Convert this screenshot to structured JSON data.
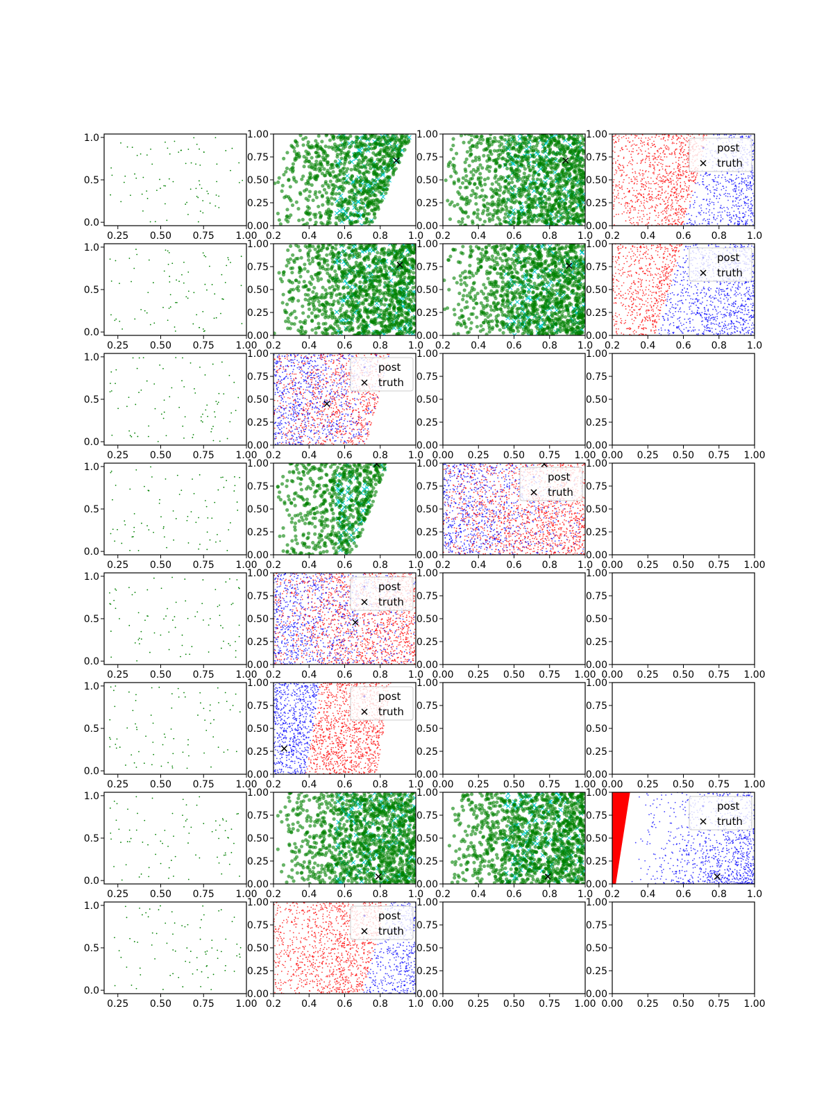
{
  "figure": {
    "layout": {
      "rows": 8,
      "cols": 4
    },
    "colors": {
      "green": "#008000",
      "cyan": "#00ced1",
      "red": "#ff0000",
      "blue": "#0000ff",
      "truth": "#000000",
      "axes": "#000000"
    }
  },
  "chart_data": [
    {
      "row": 0,
      "col": 0,
      "type": "scatter",
      "kind": "sparse",
      "xlim": [
        0.17,
        1.0
      ],
      "ylim": [
        -0.04,
        1.04
      ],
      "xticks": [
        "0.25",
        "0.50",
        "0.75",
        "1.00"
      ],
      "yticks": [
        "0.0",
        "0.5",
        "1.0"
      ]
    },
    {
      "row": 0,
      "col": 1,
      "type": "scatter",
      "kind": "green",
      "xlim": [
        0.2,
        1.0
      ],
      "ylim": [
        0,
        1
      ],
      "xticks": [
        "0.2",
        "0.4",
        "0.6",
        "0.8",
        "1.0"
      ],
      "yticks": [
        "0.00",
        "0.25",
        "0.50",
        "0.75",
        "1.00"
      ],
      "boundary": {
        "y0": 0.0,
        "x0": 0.75,
        "y1": 1.0,
        "x1": 0.98
      },
      "truth": [
        0.89,
        0.71
      ]
    },
    {
      "row": 0,
      "col": 2,
      "type": "scatter",
      "kind": "green",
      "xlim": [
        0.2,
        1.0
      ],
      "ylim": [
        0,
        1
      ],
      "xticks": [
        "0.2",
        "0.4",
        "0.6",
        "0.8",
        "1.0"
      ],
      "yticks": [
        "0.00",
        "0.25",
        "0.50",
        "0.75",
        "1.00"
      ],
      "truth": [
        0.89,
        0.71
      ]
    },
    {
      "row": 0,
      "col": 3,
      "type": "scatter",
      "kind": "redblue",
      "xlim": [
        0.2,
        1.0
      ],
      "ylim": [
        0,
        1
      ],
      "xticks": [
        "0.2",
        "0.4",
        "0.6",
        "0.8",
        "1.0"
      ],
      "yticks": [
        "0.00",
        "0.25",
        "0.50",
        "0.75",
        "1.00"
      ],
      "boundary": {
        "y0": 0.0,
        "x0": 0.6,
        "y1": 1.0,
        "x1": 0.74
      },
      "left": "red",
      "right": "blue",
      "legend": {
        "entries": [
          "post",
          "truth"
        ],
        "loc": "upper-right"
      }
    },
    {
      "row": 1,
      "col": 0,
      "type": "scatter",
      "kind": "sparse",
      "xlim": [
        0.17,
        1.0
      ],
      "ylim": [
        -0.04,
        1.04
      ],
      "xticks": [
        "0.25",
        "0.50",
        "0.75",
        "1.00"
      ],
      "yticks": [
        "0.0",
        "0.5",
        "1.0"
      ]
    },
    {
      "row": 1,
      "col": 1,
      "type": "scatter",
      "kind": "green",
      "xlim": [
        0.2,
        1.0
      ],
      "ylim": [
        0,
        1
      ],
      "xticks": [
        "0.2",
        "0.4",
        "0.6",
        "0.8",
        "1.0"
      ],
      "yticks": [
        "0.00",
        "0.25",
        "0.50",
        "0.75",
        "1.00"
      ],
      "truth": [
        0.91,
        0.77
      ]
    },
    {
      "row": 1,
      "col": 2,
      "type": "scatter",
      "kind": "green",
      "xlim": [
        0.2,
        1.0
      ],
      "ylim": [
        0,
        1
      ],
      "xticks": [
        "0.2",
        "0.4",
        "0.6",
        "0.8",
        "1.0"
      ],
      "yticks": [
        "0.00",
        "0.25",
        "0.50",
        "0.75",
        "1.00"
      ],
      "truth": [
        0.91,
        0.76
      ]
    },
    {
      "row": 1,
      "col": 3,
      "type": "scatter",
      "kind": "redblue",
      "xlim": [
        0.2,
        1.0
      ],
      "ylim": [
        0,
        1
      ],
      "xticks": [
        "0.2",
        "0.4",
        "0.6",
        "0.8",
        "1.0"
      ],
      "yticks": [
        "0.00",
        "0.25",
        "0.50",
        "0.75",
        "1.00"
      ],
      "boundary": {
        "y0": 0.0,
        "x0": 0.44,
        "y1": 1.0,
        "x1": 0.6
      },
      "left": "red",
      "right": "blue",
      "legend": {
        "entries": [
          "post",
          "truth"
        ],
        "loc": "upper-right"
      }
    },
    {
      "row": 2,
      "col": 0,
      "type": "scatter",
      "kind": "sparse",
      "xlim": [
        0.17,
        1.0
      ],
      "ylim": [
        -0.04,
        1.04
      ],
      "xticks": [
        "0.25",
        "0.50",
        "0.75",
        "1.00"
      ],
      "yticks": [
        "0.0",
        "0.5",
        "1.0"
      ]
    },
    {
      "row": 2,
      "col": 1,
      "type": "scatter",
      "kind": "mixed",
      "xlim": [
        0.2,
        1.0
      ],
      "ylim": [
        0,
        1
      ],
      "xticks": [
        "0.2",
        "0.4",
        "0.6",
        "0.8",
        "1.0"
      ],
      "yticks": [
        "0.00",
        "0.25",
        "0.50",
        "0.75",
        "1.00"
      ],
      "boundary": {
        "y0": 0.0,
        "x0": 0.72,
        "y1": 1.0,
        "x1": 0.86
      },
      "truth": [
        0.5,
        0.45
      ],
      "legend": {
        "entries": [
          "post",
          "truth"
        ],
        "loc": "upper-right"
      }
    },
    {
      "row": 2,
      "col": 2,
      "type": "scatter",
      "kind": "empty",
      "xlim": [
        0,
        1
      ],
      "ylim": [
        0,
        1
      ],
      "xticks": [
        "0.00",
        "0.25",
        "0.50",
        "0.75",
        "1.00"
      ],
      "yticks": [
        "0.00",
        "0.25",
        "0.50",
        "0.75",
        "1.00"
      ]
    },
    {
      "row": 2,
      "col": 3,
      "type": "scatter",
      "kind": "empty",
      "xlim": [
        0,
        1
      ],
      "ylim": [
        0,
        1
      ],
      "xticks": [
        "0.00",
        "0.25",
        "0.50",
        "0.75",
        "1.00"
      ],
      "yticks": [
        "0.00",
        "0.25",
        "0.50",
        "0.75",
        "1.00"
      ]
    },
    {
      "row": 3,
      "col": 0,
      "type": "scatter",
      "kind": "sparse",
      "xlim": [
        0.17,
        1.0
      ],
      "ylim": [
        -0.04,
        1.04
      ],
      "xticks": [
        "0.25",
        "0.50",
        "0.75",
        "1.00"
      ],
      "yticks": [
        "0.0",
        "0.5",
        "1.0"
      ]
    },
    {
      "row": 3,
      "col": 1,
      "type": "scatter",
      "kind": "green",
      "xlim": [
        0.2,
        1.0
      ],
      "ylim": [
        0,
        1
      ],
      "xticks": [
        "0.2",
        "0.4",
        "0.6",
        "0.8",
        "1.0"
      ],
      "yticks": [
        "0.00",
        "0.25",
        "0.50",
        "0.75",
        "1.00"
      ],
      "boundary": {
        "y0": 0.0,
        "x0": 0.65,
        "y1": 1.0,
        "x1": 0.84
      },
      "truth": [
        0.78,
        0.99
      ]
    },
    {
      "row": 3,
      "col": 2,
      "type": "scatter",
      "kind": "mixed",
      "xlim": [
        0.2,
        1.0
      ],
      "ylim": [
        0,
        1
      ],
      "xticks": [
        "0.2",
        "0.4",
        "0.6",
        "0.8",
        "1.0"
      ],
      "yticks": [
        "0.00",
        "0.25",
        "0.50",
        "0.75",
        "1.00"
      ],
      "truth": [
        0.77,
        0.99
      ],
      "legend": {
        "entries": [
          "post",
          "truth"
        ],
        "loc": "upper-right"
      }
    },
    {
      "row": 3,
      "col": 3,
      "type": "scatter",
      "kind": "empty",
      "xlim": [
        0,
        1
      ],
      "ylim": [
        0,
        1
      ],
      "xticks": [
        "0.00",
        "0.25",
        "0.50",
        "0.75",
        "1.00"
      ],
      "yticks": [
        "0.00",
        "0.25",
        "0.50",
        "0.75",
        "1.00"
      ]
    },
    {
      "row": 4,
      "col": 0,
      "type": "scatter",
      "kind": "sparse",
      "xlim": [
        0.17,
        1.0
      ],
      "ylim": [
        -0.04,
        1.04
      ],
      "xticks": [
        "0.25",
        "0.50",
        "0.75",
        "1.00"
      ],
      "yticks": [
        "0.0",
        "0.5",
        "1.0"
      ]
    },
    {
      "row": 4,
      "col": 1,
      "type": "scatter",
      "kind": "mixed",
      "xlim": [
        0.2,
        1.0
      ],
      "ylim": [
        0,
        1
      ],
      "xticks": [
        "0.2",
        "0.4",
        "0.6",
        "0.8",
        "1.0"
      ],
      "yticks": [
        "0.00",
        "0.25",
        "0.50",
        "0.75",
        "1.00"
      ],
      "truth": [
        0.66,
        0.46
      ],
      "legend": {
        "entries": [
          "post",
          "truth"
        ],
        "loc": "upper-right"
      }
    },
    {
      "row": 4,
      "col": 2,
      "type": "scatter",
      "kind": "empty",
      "xlim": [
        0,
        1
      ],
      "ylim": [
        0,
        1
      ],
      "xticks": [
        "0.00",
        "0.25",
        "0.50",
        "0.75",
        "1.00"
      ],
      "yticks": [
        "0.00",
        "0.25",
        "0.50",
        "0.75",
        "1.00"
      ]
    },
    {
      "row": 4,
      "col": 3,
      "type": "scatter",
      "kind": "empty",
      "xlim": [
        0,
        1
      ],
      "ylim": [
        0,
        1
      ],
      "xticks": [
        "0.00",
        "0.25",
        "0.50",
        "0.75",
        "1.00"
      ],
      "yticks": [
        "0.00",
        "0.25",
        "0.50",
        "0.75",
        "1.00"
      ]
    },
    {
      "row": 5,
      "col": 0,
      "type": "scatter",
      "kind": "sparse",
      "xlim": [
        0.17,
        1.0
      ],
      "ylim": [
        -0.04,
        1.04
      ],
      "xticks": [
        "0.25",
        "0.50",
        "0.75",
        "1.00"
      ],
      "yticks": [
        "0.0",
        "0.5",
        "1.0"
      ]
    },
    {
      "row": 5,
      "col": 1,
      "type": "scatter",
      "kind": "redblue",
      "xlim": [
        0.2,
        1.0
      ],
      "ylim": [
        0,
        1
      ],
      "xticks": [
        "0.2",
        "0.4",
        "0.6",
        "0.8",
        "1.0"
      ],
      "yticks": [
        "0.00",
        "0.25",
        "0.50",
        "0.75",
        "1.00"
      ],
      "boundary": {
        "y0": 0.0,
        "x0": 0.38,
        "y1": 1.0,
        "x1": 0.46
      },
      "left": "blue",
      "right": "red",
      "rightEdge": {
        "y0": 0.0,
        "x0": 0.78,
        "y1": 1.0,
        "x1": 0.86
      },
      "truth": [
        0.26,
        0.28
      ],
      "legend": {
        "entries": [
          "post",
          "truth"
        ],
        "loc": "upper-right"
      }
    },
    {
      "row": 5,
      "col": 2,
      "type": "scatter",
      "kind": "empty",
      "xlim": [
        0,
        1
      ],
      "ylim": [
        0,
        1
      ],
      "xticks": [
        "0.00",
        "0.25",
        "0.50",
        "0.75",
        "1.00"
      ],
      "yticks": [
        "0.00",
        "0.25",
        "0.50",
        "0.75",
        "1.00"
      ]
    },
    {
      "row": 5,
      "col": 3,
      "type": "scatter",
      "kind": "empty",
      "xlim": [
        0,
        1
      ],
      "ylim": [
        0,
        1
      ],
      "xticks": [
        "0.00",
        "0.25",
        "0.50",
        "0.75",
        "1.00"
      ],
      "yticks": [
        "0.00",
        "0.25",
        "0.50",
        "0.75",
        "1.00"
      ]
    },
    {
      "row": 6,
      "col": 0,
      "type": "scatter",
      "kind": "sparse",
      "xlim": [
        0.17,
        1.0
      ],
      "ylim": [
        -0.04,
        1.04
      ],
      "xticks": [
        "0.25",
        "0.50",
        "0.75",
        "1.00"
      ],
      "yticks": [
        "0.0",
        "0.5",
        "1.0"
      ]
    },
    {
      "row": 6,
      "col": 1,
      "type": "scatter",
      "kind": "green",
      "xlim": [
        0.2,
        1.0
      ],
      "ylim": [
        0,
        1
      ],
      "xticks": [
        "0.2",
        "0.4",
        "0.6",
        "0.8",
        "1.0"
      ],
      "yticks": [
        "0.00",
        "0.25",
        "0.50",
        "0.75",
        "1.00"
      ],
      "truth": [
        0.79,
        0.08
      ]
    },
    {
      "row": 6,
      "col": 2,
      "type": "scatter",
      "kind": "green",
      "xlim": [
        0.2,
        1.0
      ],
      "ylim": [
        0,
        1
      ],
      "xticks": [
        "0.2",
        "0.4",
        "0.6",
        "0.8",
        "1.0"
      ],
      "yticks": [
        "0.00",
        "0.25",
        "0.50",
        "0.75",
        "1.00"
      ],
      "truth": [
        0.79,
        0.08
      ]
    },
    {
      "row": 6,
      "col": 3,
      "type": "scatter",
      "kind": "redwedge",
      "xlim": [
        0.2,
        1.0
      ],
      "ylim": [
        0,
        1
      ],
      "xticks": [
        "0.2",
        "0.4",
        "0.6",
        "0.8",
        "1.0"
      ],
      "yticks": [
        "0.00",
        "0.25",
        "0.50",
        "0.75",
        "1.00"
      ],
      "truth": [
        0.79,
        0.08
      ],
      "legend": {
        "entries": [
          "post",
          "truth"
        ],
        "loc": "upper-right"
      }
    },
    {
      "row": 7,
      "col": 0,
      "type": "scatter",
      "kind": "sparse",
      "xlim": [
        0.17,
        1.0
      ],
      "ylim": [
        -0.04,
        1.04
      ],
      "xticks": [
        "0.25",
        "0.50",
        "0.75",
        "1.00"
      ],
      "yticks": [
        "0.0",
        "0.5",
        "1.0"
      ]
    },
    {
      "row": 7,
      "col": 1,
      "type": "scatter",
      "kind": "redblue",
      "xlim": [
        0.2,
        1.0
      ],
      "ylim": [
        0,
        1
      ],
      "xticks": [
        "0.2",
        "0.4",
        "0.6",
        "0.8",
        "1.0"
      ],
      "yticks": [
        "0.00",
        "0.25",
        "0.50",
        "0.75",
        "1.00"
      ],
      "boundary": {
        "y0": 0.0,
        "x0": 0.7,
        "y1": 1.0,
        "x1": 0.84
      },
      "left": "red",
      "right": "blue",
      "legend": {
        "entries": [
          "post",
          "truth"
        ],
        "loc": "upper-right"
      }
    },
    {
      "row": 7,
      "col": 2,
      "type": "scatter",
      "kind": "empty",
      "xlim": [
        0,
        1
      ],
      "ylim": [
        0,
        1
      ],
      "xticks": [
        "0.00",
        "0.25",
        "0.50",
        "0.75",
        "1.00"
      ],
      "yticks": [
        "0.00",
        "0.25",
        "0.50",
        "0.75",
        "1.00"
      ]
    },
    {
      "row": 7,
      "col": 3,
      "type": "scatter",
      "kind": "empty",
      "xlim": [
        0,
        1
      ],
      "ylim": [
        0,
        1
      ],
      "xticks": [
        "0.00",
        "0.25",
        "0.50",
        "0.75",
        "1.00"
      ],
      "yticks": [
        "0.00",
        "0.25",
        "0.50",
        "0.75",
        "1.00"
      ]
    }
  ]
}
